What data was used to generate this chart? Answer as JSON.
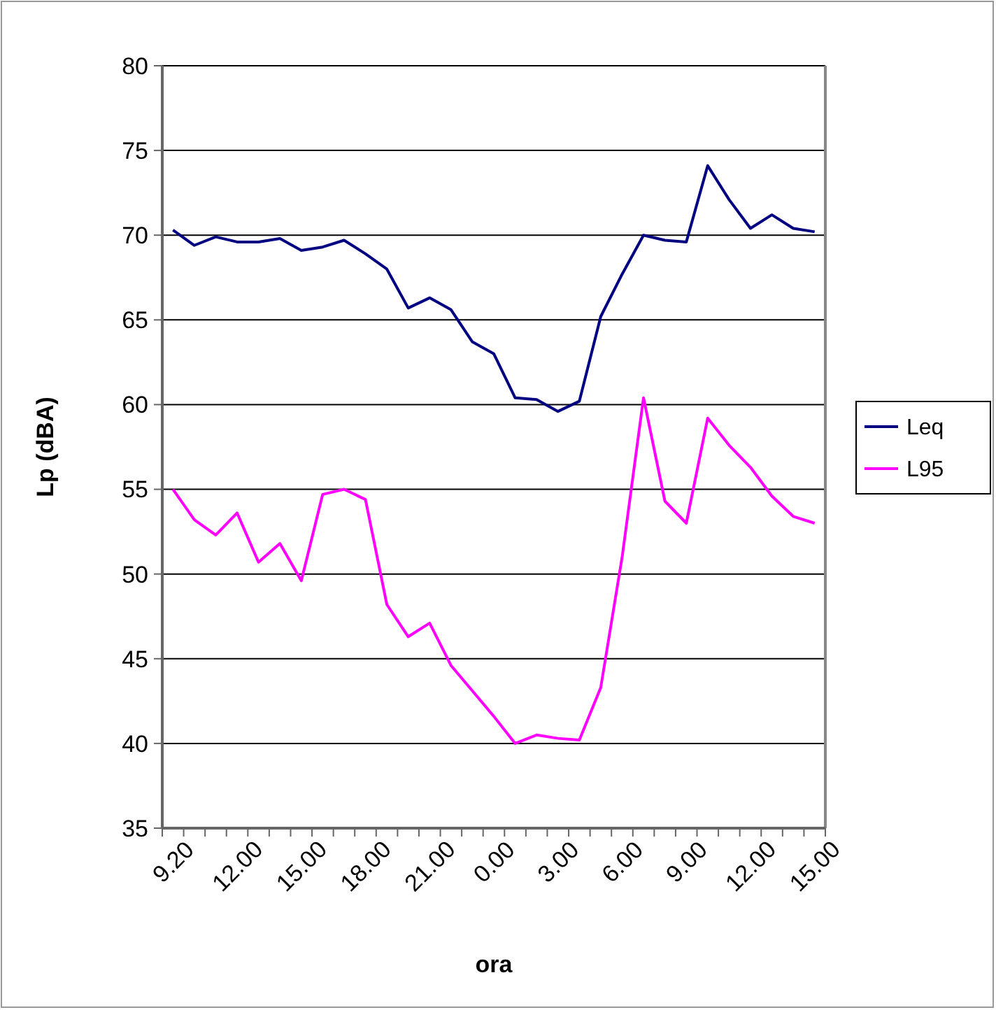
{
  "chart_data": {
    "type": "line",
    "xlabel": "ora",
    "ylabel": "Lp (dBA)",
    "categories": [
      "9.20",
      null,
      null,
      "12.00",
      null,
      null,
      "15.00",
      null,
      null,
      "18.00",
      null,
      null,
      "21.00",
      null,
      null,
      "0.00",
      null,
      null,
      "3.00",
      null,
      null,
      "6.00",
      null,
      null,
      "9.00",
      null,
      null,
      "12.00",
      null,
      null,
      "15.00"
    ],
    "series": [
      {
        "name": "Leq",
        "color": "#000080",
        "values": [
          70.3,
          69.4,
          69.9,
          69.6,
          69.6,
          69.8,
          69.1,
          69.3,
          69.7,
          68.9,
          68.0,
          65.7,
          66.3,
          65.6,
          63.7,
          63.0,
          60.4,
          60.3,
          59.6,
          60.2,
          65.2,
          67.7,
          70.0,
          69.7,
          69.6,
          74.1,
          72.1,
          70.4,
          71.2,
          70.4,
          70.2
        ]
      },
      {
        "name": "L95",
        "color": "#ff00ff",
        "values": [
          55.0,
          53.2,
          52.3,
          53.6,
          50.7,
          51.8,
          49.6,
          54.7,
          55.0,
          54.4,
          48.2,
          46.3,
          47.1,
          44.6,
          43.1,
          41.6,
          40.0,
          40.5,
          40.3,
          40.2,
          43.3,
          51.0,
          60.4,
          54.3,
          53.0,
          59.2,
          57.6,
          56.3,
          54.6,
          53.4,
          53.0
        ]
      }
    ],
    "ylim": [
      35,
      80
    ],
    "yticks": [
      35,
      40,
      45,
      50,
      55,
      60,
      65,
      70,
      75,
      80
    ],
    "grid": "y",
    "legend": "right",
    "marker": "none",
    "line_style": "solid"
  }
}
